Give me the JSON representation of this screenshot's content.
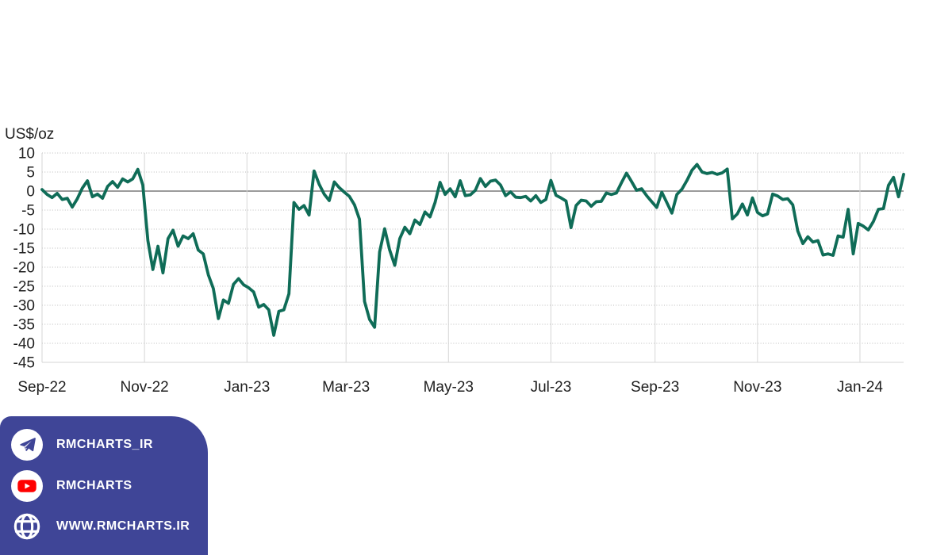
{
  "chart_data": {
    "type": "line",
    "title": "",
    "unit_label": "US$/oz",
    "xlabel": "",
    "ylabel": "US$/oz",
    "grid": true,
    "legend": "none",
    "y_axis": {
      "min": -45,
      "max": 10,
      "ticks": [
        10,
        5,
        0,
        -5,
        -10,
        -15,
        -20,
        -25,
        -30,
        -35,
        -40,
        -45
      ]
    },
    "x_ticks": [
      {
        "label": "Sep-22",
        "day_offset": 0
      },
      {
        "label": "Nov-22",
        "day_offset": 61
      },
      {
        "label": "Jan-23",
        "day_offset": 122
      },
      {
        "label": "Mar-23",
        "day_offset": 181
      },
      {
        "label": "May-23",
        "day_offset": 242
      },
      {
        "label": "Jul-23",
        "day_offset": 303
      },
      {
        "label": "Sep-23",
        "day_offset": 365
      },
      {
        "label": "Nov-23",
        "day_offset": 426
      },
      {
        "label": "Jan-24",
        "day_offset": 487
      }
    ],
    "series": {
      "start_date": "2022-09-01",
      "interval_days": 3,
      "values": [
        0.4,
        -0.9,
        -1.7,
        -0.6,
        -2.2,
        -1.9,
        -4.2,
        -2.0,
        0.8,
        2.7,
        -1.5,
        -0.8,
        -1.9,
        1.2,
        2.5,
        1.0,
        3.2,
        2.4,
        3.2,
        5.7,
        1.6,
        -13.0,
        -20.6,
        -14.5,
        -21.5,
        -12.5,
        -10.3,
        -14.5,
        -11.8,
        -12.5,
        -11.2,
        -15.5,
        -16.5,
        -22.0,
        -25.6,
        -33.5,
        -28.6,
        -29.5,
        -24.5,
        -23.0,
        -24.6,
        -25.4,
        -26.5,
        -30.5,
        -29.8,
        -31.2,
        -37.9,
        -31.6,
        -31.2,
        -27.0,
        -3.0,
        -4.8,
        -3.8,
        -6.3,
        5.3,
        1.8,
        -0.8,
        -2.5,
        2.4,
        0.9,
        -0.3,
        -1.4,
        -3.6,
        -7.4,
        -29.0,
        -33.7,
        -35.8,
        -16.0,
        -9.9,
        -15.5,
        -19.5,
        -12.5,
        -9.5,
        -11.2,
        -7.6,
        -8.8,
        -5.5,
        -6.8,
        -3.0,
        2.3,
        -0.9,
        0.6,
        -1.5,
        2.7,
        -1.2,
        -1.0,
        0.2,
        3.3,
        1.2,
        2.6,
        2.9,
        1.6,
        -1.2,
        -0.2,
        -1.6,
        -1.7,
        -1.4,
        -2.6,
        -1.2,
        -3.0,
        -2.2,
        2.8,
        -1.1,
        -1.8,
        -2.6,
        -9.6,
        -3.8,
        -2.4,
        -2.6,
        -4.0,
        -2.8,
        -2.7,
        -0.5,
        -0.9,
        -0.5,
        2.2,
        4.7,
        2.5,
        0.2,
        0.6,
        -1.2,
        -2.8,
        -4.3,
        -0.3,
        -3.0,
        -5.8,
        -0.9,
        0.5,
        2.8,
        5.5,
        7.0,
        5.0,
        4.6,
        4.9,
        4.4,
        4.8,
        5.8,
        -7.3,
        -6.0,
        -3.4,
        -6.3,
        -1.8,
        -5.6,
        -6.5,
        -6.0,
        -0.8,
        -1.3,
        -2.2,
        -2.0,
        -3.6,
        -10.5,
        -13.8,
        -12.0,
        -13.4,
        -13.0,
        -16.8,
        -16.5,
        -16.9,
        -11.8,
        -12.1,
        -4.8,
        -16.5,
        -8.5,
        -9.2,
        -10.2,
        -8.0,
        -4.8,
        -4.6,
        1.5,
        3.6,
        -1.5,
        4.4
      ]
    },
    "colors": {
      "line": "#0F6C57",
      "zero_line": "#7A7A7A",
      "gridline_dotted": "#BDBDBD",
      "frame": "#D6D6D6",
      "text": "#1F1F1F",
      "background": "#FFFFFF"
    }
  },
  "social_panel": {
    "background": "#3F4597",
    "text_color": "#FFFFFF",
    "youtube_red": "#FF0000",
    "items": [
      {
        "icon": "telegram-icon",
        "label": "RMCHARTS_IR"
      },
      {
        "icon": "youtube-icon",
        "label": "RMCHARTS"
      },
      {
        "icon": "globe-icon",
        "label": "WWW.RMCHARTS.IR"
      }
    ]
  }
}
